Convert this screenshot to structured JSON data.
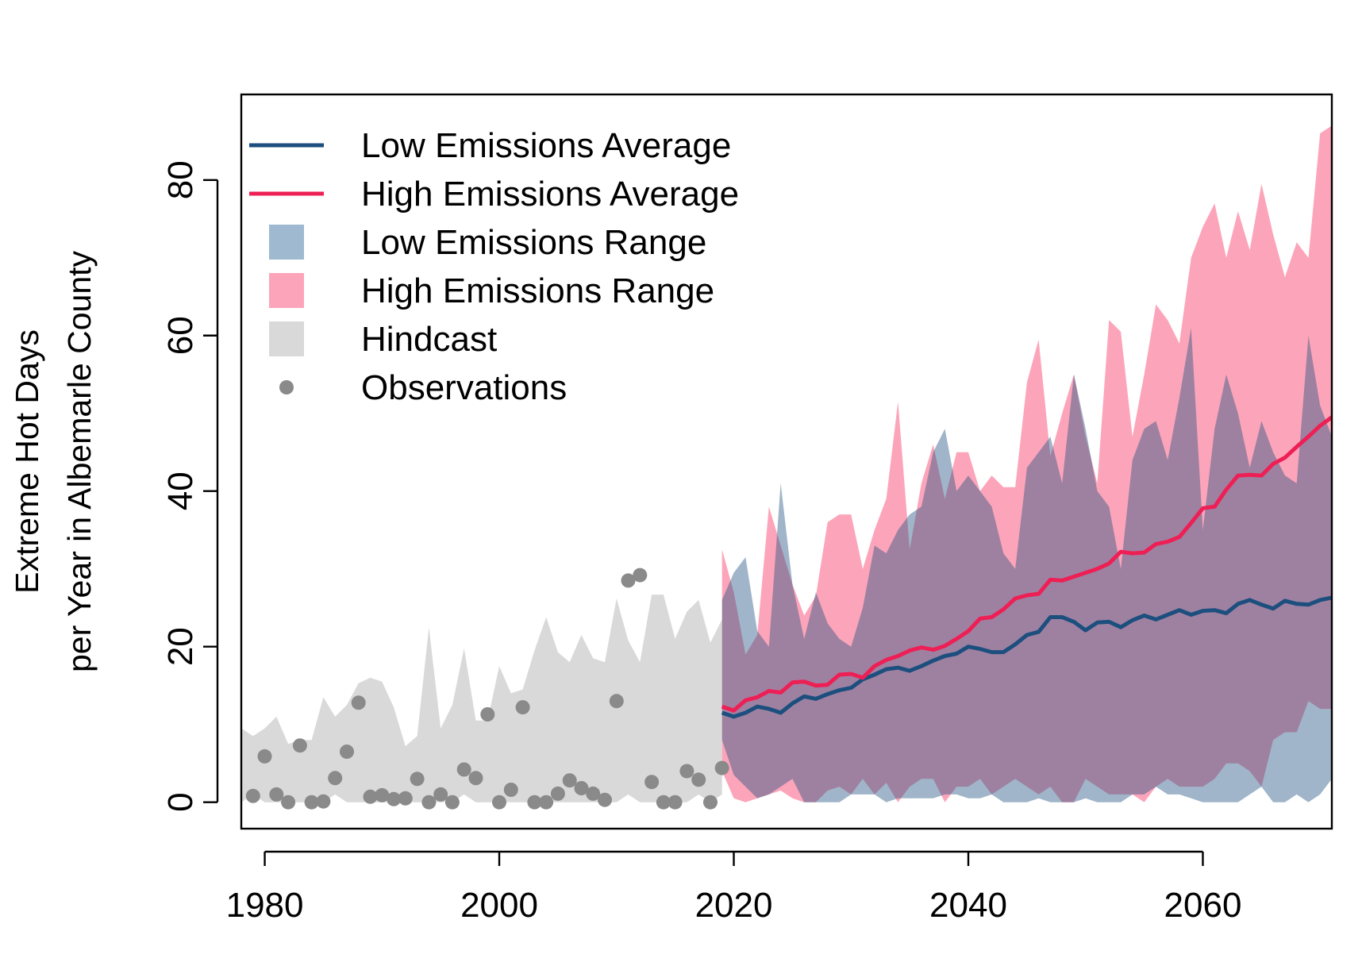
{
  "chart_data": {
    "type": "area",
    "title": "",
    "xlabel": "",
    "ylabel_lines": [
      "Extreme Hot Days",
      "per Year in Albemarle County"
    ],
    "xlim": [
      1978,
      2071
    ],
    "ylim": [
      -3.4,
      91
    ],
    "xticks": [
      1980,
      2000,
      2020,
      2040,
      2060
    ],
    "yticks": [
      0,
      20,
      40,
      60,
      80
    ],
    "xtick_labels": [
      "1980",
      "2000",
      "2020",
      "2040",
      "2060"
    ],
    "ytick_labels": [
      "0",
      "20",
      "40",
      "60",
      "80"
    ],
    "grid": false,
    "legend_position": "top-left",
    "colors": {
      "low_avg": "#1c4f7e",
      "high_avg": "#ee1f55",
      "low_range": "#9eb9d0",
      "high_range": "#fca5ba",
      "overlap": "#9c87a6",
      "hindcast": "#d9d9d9",
      "observations": "#8a8a8a"
    },
    "legend": [
      {
        "key": "low_avg",
        "label": "Low Emissions Average",
        "symbol": "line"
      },
      {
        "key": "high_avg",
        "label": "High Emissions Average",
        "symbol": "line"
      },
      {
        "key": "low_range",
        "label": "Low Emissions Range",
        "symbol": "box"
      },
      {
        "key": "high_range",
        "label": "High Emissions Range",
        "symbol": "box"
      },
      {
        "key": "hindcast",
        "label": "Hindcast",
        "symbol": "box"
      },
      {
        "key": "observations",
        "label": "Observations",
        "symbol": "point"
      }
    ],
    "hindcast": {
      "x": [
        1978,
        1979,
        1980,
        1981,
        1982,
        1983,
        1984,
        1985,
        1986,
        1987,
        1988,
        1989,
        1990,
        1991,
        1992,
        1993,
        1994,
        1995,
        1996,
        1997,
        1998,
        1999,
        2000,
        2001,
        2002,
        2003,
        2004,
        2005,
        2006,
        2007,
        2008,
        2009,
        2010,
        2011,
        2012,
        2013,
        2014,
        2015,
        2016,
        2017,
        2018,
        2019
      ],
      "low": [
        0,
        1,
        0,
        0,
        0,
        0,
        0,
        0,
        1,
        0,
        0,
        0,
        0,
        0,
        0,
        0,
        0,
        0,
        0,
        1,
        0,
        0,
        0,
        0,
        0,
        0,
        0,
        0,
        0,
        0,
        0,
        0,
        0,
        1,
        0,
        0,
        0,
        0,
        0,
        1,
        0,
        1
      ],
      "high": [
        9.5,
        8.5,
        9.5,
        11,
        7.5,
        8,
        8,
        13.5,
        11,
        12.5,
        15.3,
        16,
        15.5,
        12.2,
        7.2,
        8.5,
        22.5,
        9.5,
        12.5,
        19.8,
        10.5,
        10.5,
        17.5,
        14,
        14.5,
        19.5,
        23.8,
        19.3,
        18,
        21.5,
        18.5,
        18,
        26.2,
        20.8,
        18,
        26.7,
        26.7,
        21,
        24.5,
        26,
        20.5,
        23.5
      ]
    },
    "observations": {
      "x": [
        1979,
        1980,
        1981,
        1982,
        1983,
        1984,
        1985,
        1986,
        1987,
        1988,
        1989,
        1990,
        1991,
        1992,
        1993,
        1994,
        1995,
        1996,
        1997,
        1998,
        1999,
        2000,
        2001,
        2002,
        2003,
        2004,
        2005,
        2006,
        2007,
        2008,
        2009,
        2010,
        2011,
        2012,
        2013,
        2014,
        2015,
        2016,
        2017,
        2018,
        2019
      ],
      "y": [
        0.8,
        5.9,
        1,
        0,
        7.3,
        0,
        0.1,
        3.1,
        6.5,
        12.8,
        0.7,
        0.9,
        0.4,
        0.5,
        3.0,
        0,
        1.0,
        0,
        4.2,
        3.1,
        11.3,
        0,
        1.6,
        12.2,
        0,
        0,
        1.1,
        2.8,
        1.8,
        1.1,
        0.3,
        13,
        28.5,
        29.2,
        2.6,
        0,
        0,
        4.0,
        2.9,
        0,
        4.4
      ]
    },
    "series": [
      {
        "key": "low",
        "name": "Low Emissions",
        "x": [
          2019,
          2020,
          2021,
          2022,
          2023,
          2024,
          2025,
          2026,
          2027,
          2028,
          2029,
          2030,
          2031,
          2032,
          2033,
          2034,
          2035,
          2036,
          2037,
          2038,
          2039,
          2040,
          2041,
          2042,
          2043,
          2044,
          2045,
          2046,
          2047,
          2048,
          2049,
          2050,
          2051,
          2052,
          2053,
          2054,
          2055,
          2056,
          2057,
          2058,
          2059,
          2060,
          2061,
          2062,
          2063,
          2064,
          2065,
          2066,
          2067,
          2068,
          2069,
          2070,
          2071
        ],
        "average": [
          11.5,
          11,
          11.5,
          12.3,
          12,
          11.5,
          12.7,
          13.6,
          13.3,
          13.9,
          14.4,
          14.7,
          15.8,
          16.4,
          17.1,
          17.3,
          16.9,
          17.5,
          18.2,
          18.8,
          19.1,
          20,
          19.7,
          19.3,
          19.3,
          20.3,
          21.5,
          21.9,
          23.8,
          23.8,
          23.2,
          22.1,
          23.1,
          23.2,
          22.5,
          23.4,
          24,
          23.5,
          24.1,
          24.7,
          24.1,
          24.6,
          24.7,
          24.3,
          25.5,
          26,
          25.4,
          24.9,
          25.9,
          25.5,
          25.4,
          26,
          26.3
        ],
        "range_low": [
          8,
          3.5,
          2,
          0.5,
          1,
          2,
          3,
          0,
          0,
          0,
          0,
          1,
          1,
          1,
          0,
          0.5,
          0.5,
          0.5,
          0.5,
          1,
          1,
          0.5,
          0.5,
          1,
          0,
          0,
          0,
          0.5,
          0,
          0,
          0,
          0.5,
          0,
          0,
          0,
          1,
          1,
          2,
          1,
          1,
          0.5,
          0,
          0,
          0,
          0,
          1,
          2,
          0,
          0,
          1,
          0,
          1,
          3
        ],
        "range_high": [
          26,
          29.5,
          31.5,
          22,
          20,
          41,
          28,
          21,
          27,
          23,
          21,
          20,
          25,
          33,
          32,
          35,
          37,
          38,
          45,
          48,
          40,
          42,
          40,
          38,
          32,
          30,
          43,
          45,
          47,
          41,
          55,
          48,
          40,
          38,
          30,
          44,
          48,
          49,
          44,
          52,
          61,
          35,
          48,
          55,
          50,
          43,
          49,
          45,
          42,
          41,
          60,
          51,
          47
        ]
      },
      {
        "key": "high",
        "name": "High Emissions",
        "x": [
          2019,
          2020,
          2021,
          2022,
          2023,
          2024,
          2025,
          2026,
          2027,
          2028,
          2029,
          2030,
          2031,
          2032,
          2033,
          2034,
          2035,
          2036,
          2037,
          2038,
          2039,
          2040,
          2041,
          2042,
          2043,
          2044,
          2045,
          2046,
          2047,
          2048,
          2049,
          2050,
          2051,
          2052,
          2053,
          2054,
          2055,
          2056,
          2057,
          2058,
          2059,
          2060,
          2061,
          2062,
          2063,
          2064,
          2065,
          2066,
          2067,
          2068,
          2069,
          2070,
          2071
        ],
        "average": [
          12.3,
          11.8,
          13.1,
          13.5,
          14.3,
          14.1,
          15.4,
          15.5,
          15,
          15.1,
          16.4,
          16.5,
          16,
          17.5,
          18.3,
          18.8,
          19.5,
          19.9,
          19.6,
          20.1,
          21,
          22,
          23.6,
          23.8,
          24.8,
          26.2,
          26.6,
          26.8,
          28.6,
          28.5,
          29,
          29.5,
          30,
          30.7,
          32.2,
          32,
          32.1,
          33.2,
          33.5,
          34.1,
          35.9,
          37.8,
          38,
          40.2,
          42,
          42.1,
          42,
          43.5,
          44.3,
          45.7,
          47,
          48.4,
          49.5
        ],
        "range_low": [
          4,
          0.5,
          0,
          0.5,
          1,
          1.5,
          0.5,
          0,
          0,
          1.5,
          2,
          1,
          3,
          1,
          2.5,
          0,
          2,
          3,
          3,
          0,
          2,
          2,
          3,
          1,
          2,
          3,
          2,
          1,
          2,
          0,
          0,
          3,
          2,
          1,
          1,
          1,
          0,
          2,
          3,
          2,
          2,
          2,
          3,
          5,
          5,
          4,
          2,
          8,
          9,
          9,
          13,
          12,
          12
        ],
        "range_high": [
          32.5,
          27,
          19,
          21.5,
          38,
          33,
          28,
          24,
          26.5,
          36,
          37,
          37,
          30,
          35,
          39,
          51.5,
          32.5,
          41,
          46,
          39,
          45,
          45,
          40,
          42,
          40.5,
          40.5,
          54,
          59.5,
          44.5,
          50,
          55,
          47,
          41,
          62,
          60.5,
          47,
          55,
          64,
          62,
          59,
          70,
          74,
          77,
          70,
          76,
          71,
          79.5,
          73,
          67.5,
          72,
          70,
          86,
          87
        ]
      }
    ]
  }
}
